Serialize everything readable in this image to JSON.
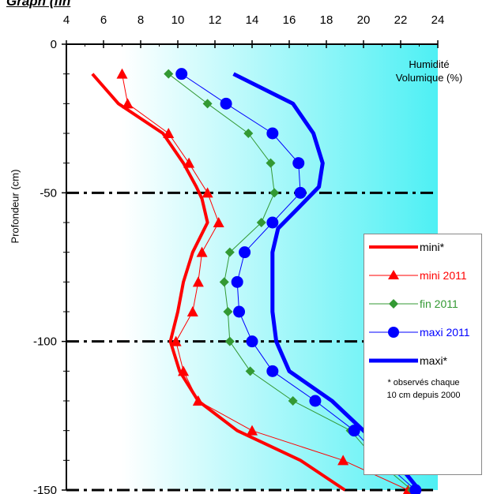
{
  "header": {
    "title_fragment": "Graph (fin"
  },
  "chart_data": {
    "type": "line",
    "title": "",
    "xlabel": "Humidité Volumique (%)",
    "xlabel_lines": [
      "Humidité",
      "Volumique (%)"
    ],
    "ylabel": "Profondeur (cm)",
    "xlim": [
      4,
      24
    ],
    "ylim": [
      -150,
      0
    ],
    "x_ticks": [
      "4",
      "6",
      "8",
      "10",
      "12",
      "14",
      "16",
      "18",
      "20",
      "22",
      "24"
    ],
    "y_ticks": [
      "0",
      "-50",
      "-100",
      "-150"
    ],
    "x_axis_position": "top",
    "background": "gradient white to cyan",
    "reference_lines_y": [
      -50,
      -100,
      -150
    ],
    "legend_position": "right",
    "series": [
      {
        "name": "mini*",
        "marker": "none",
        "color": "#ff0000",
        "x": [
          5.4,
          6.8,
          9.2,
          10.3,
          11.0,
          11.3,
          11.6,
          10.8,
          10.3,
          10.0,
          9.6,
          10.1,
          11.1,
          13.2,
          16.6,
          19.0
        ],
        "y": [
          -10,
          -20,
          -30,
          -40,
          -48,
          -52,
          -60,
          -70,
          -80,
          -90,
          -100,
          -110,
          -120,
          -130,
          -140,
          -150
        ]
      },
      {
        "name": "mini 2011",
        "marker": "triangle",
        "color": "#ff0000",
        "x": [
          7.0,
          7.3,
          9.5,
          10.6,
          11.6,
          12.2,
          11.3,
          11.1,
          10.8,
          9.9,
          10.3,
          11.1,
          14.0,
          18.9,
          22.4
        ],
        "y": [
          -10,
          -20,
          -30,
          -40,
          -50,
          -60,
          -70,
          -80,
          -90,
          -100,
          -110,
          -120,
          -130,
          -140,
          -150
        ]
      },
      {
        "name": "fin 2011",
        "marker": "diamond",
        "color": "#339933",
        "x": [
          9.5,
          11.6,
          13.8,
          15.0,
          15.2,
          14.5,
          12.8,
          12.5,
          12.7,
          12.8,
          13.9,
          16.2,
          19.3,
          20.7,
          22.6
        ],
        "y": [
          -10,
          -20,
          -30,
          -40,
          -50,
          -60,
          -70,
          -80,
          -90,
          -100,
          -110,
          -120,
          -130,
          -140,
          -150
        ]
      },
      {
        "name": "maxi 2011",
        "marker": "circle",
        "color": "#0000ff",
        "x": [
          10.2,
          12.6,
          15.1,
          16.5,
          16.6,
          15.1,
          13.6,
          13.2,
          13.3,
          14.0,
          15.1,
          17.4,
          19.5,
          21.0,
          22.8
        ],
        "y": [
          -10,
          -20,
          -30,
          -40,
          -50,
          -60,
          -70,
          -80,
          -90,
          -100,
          -110,
          -120,
          -130,
          -140,
          -150
        ]
      },
      {
        "name": "maxi*",
        "marker": "none",
        "color": "#0000ff",
        "x": [
          13.0,
          16.2,
          17.3,
          17.8,
          17.6,
          16.5,
          15.4,
          15.1,
          15.1,
          15.1,
          15.3,
          16.0,
          18.3,
          20.0,
          21.7,
          23.0
        ],
        "y": [
          -10,
          -20,
          -30,
          -40,
          -48,
          -55,
          -62,
          -70,
          -80,
          -90,
          -100,
          -110,
          -120,
          -130,
          -140,
          -150
        ]
      }
    ],
    "legend_note": "* observés chaque 10 cm depuis 2000",
    "legend_note_lines": [
      "* observés chaque",
      "10 cm depuis 2000"
    ]
  }
}
